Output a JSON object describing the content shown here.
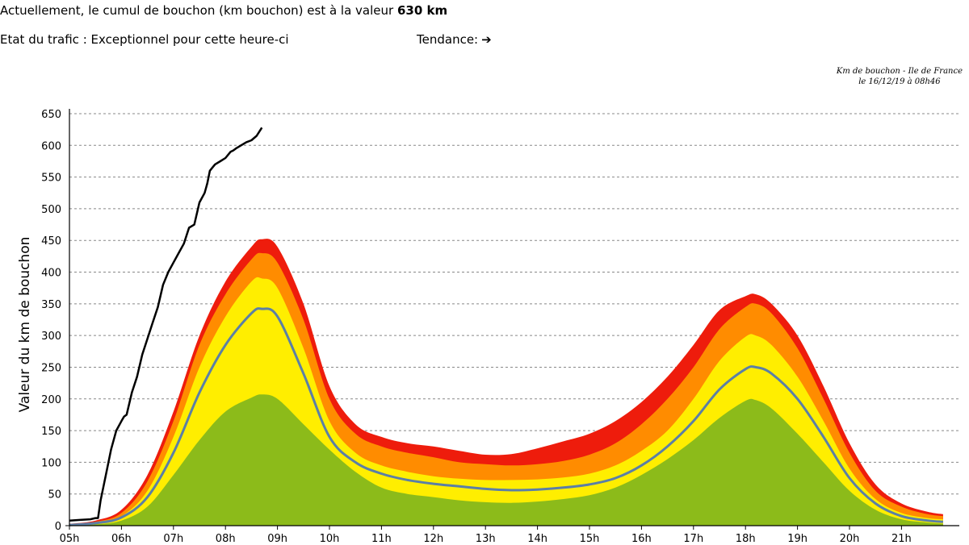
{
  "header": {
    "summary_prefix": "Actuellement, le cumul de bouchon (km bouchon) est à la valeur",
    "summary_value": "630 km",
    "state_label": "Etat du trafic : Exceptionnel pour cette heure-ci",
    "trend_label": "Tendance:",
    "trend_arrow": "➔"
  },
  "chart_title": {
    "line1": "Km de bouchon - Ile de France",
    "line2": "le 16/12/19 à 08h46"
  },
  "chart_data": {
    "type": "area",
    "ylabel": "Valeur du  km de bouchon",
    "xlabel": "",
    "ylim": [
      0,
      650
    ],
    "xlim": [
      5.0,
      21.9
    ],
    "grid": true,
    "x_ticks": [
      "05h",
      "06h",
      "07h",
      "08h",
      "09h",
      "10h",
      "11h",
      "12h",
      "13h",
      "14h",
      "15h",
      "16h",
      "17h",
      "18h",
      "19h",
      "20h",
      "21h"
    ],
    "y_ticks": [
      0,
      50,
      100,
      150,
      200,
      250,
      300,
      350,
      400,
      450,
      500,
      550,
      600,
      650
    ],
    "bands": [
      {
        "color": "#ee1c0c",
        "x": [
          5.0,
          5.5,
          6.0,
          6.5,
          7.0,
          7.5,
          8.0,
          8.5,
          8.7,
          9.0,
          9.5,
          10.0,
          10.5,
          11.0,
          11.5,
          12.0,
          12.5,
          13.0,
          13.5,
          14.0,
          14.5,
          15.0,
          15.5,
          16.0,
          16.5,
          17.0,
          17.5,
          18.0,
          18.2,
          18.5,
          19.0,
          19.5,
          20.0,
          20.5,
          21.0,
          21.5,
          21.8
        ],
        "y": [
          3,
          8,
          25,
          80,
          180,
          300,
          385,
          440,
          452,
          440,
          350,
          220,
          160,
          140,
          130,
          125,
          118,
          112,
          113,
          122,
          133,
          145,
          165,
          195,
          235,
          285,
          340,
          362,
          365,
          350,
          300,
          220,
          130,
          65,
          35,
          22,
          18
        ]
      },
      {
        "color": "#ff8c00",
        "x": [
          5.0,
          5.5,
          6.0,
          6.5,
          7.0,
          7.5,
          8.0,
          8.5,
          8.7,
          9.0,
          9.5,
          10.0,
          10.5,
          11.0,
          11.5,
          12.0,
          12.5,
          13.0,
          13.5,
          14.0,
          14.5,
          15.0,
          15.5,
          16.0,
          16.5,
          17.0,
          17.5,
          18.0,
          18.2,
          18.5,
          19.0,
          19.5,
          20.0,
          20.5,
          21.0,
          21.5,
          21.8
        ],
        "y": [
          2,
          6,
          20,
          70,
          165,
          285,
          365,
          420,
          430,
          415,
          325,
          200,
          145,
          125,
          115,
          108,
          100,
          97,
          95,
          97,
          102,
          112,
          130,
          160,
          200,
          250,
          310,
          345,
          350,
          335,
          280,
          200,
          115,
          55,
          30,
          18,
          15
        ]
      },
      {
        "color": "#ffee00",
        "x": [
          5.0,
          5.5,
          6.0,
          6.5,
          7.0,
          7.5,
          8.0,
          8.5,
          8.7,
          9.0,
          9.5,
          10.0,
          10.5,
          11.0,
          11.5,
          12.0,
          12.5,
          13.0,
          13.5,
          14.0,
          14.5,
          15.0,
          15.5,
          16.0,
          16.5,
          17.0,
          17.5,
          18.0,
          18.2,
          18.5,
          19.0,
          19.5,
          20.0,
          20.5,
          21.0,
          21.5,
          21.8
        ],
        "y": [
          1,
          5,
          15,
          55,
          140,
          250,
          330,
          385,
          390,
          375,
          280,
          165,
          115,
          95,
          85,
          78,
          74,
          72,
          72,
          73,
          76,
          82,
          95,
          118,
          150,
          200,
          260,
          298,
          300,
          285,
          235,
          165,
          90,
          42,
          20,
          12,
          10
        ]
      },
      {
        "color": "#8cbb1a",
        "x": [
          5.0,
          5.5,
          6.0,
          6.5,
          7.0,
          7.5,
          8.0,
          8.5,
          8.7,
          9.0,
          9.5,
          10.0,
          10.5,
          11.0,
          11.5,
          12.0,
          12.5,
          13.0,
          13.5,
          14.0,
          14.5,
          15.0,
          15.5,
          16.0,
          16.5,
          17.0,
          17.5,
          18.0,
          18.2,
          18.5,
          19.0,
          19.5,
          20.0,
          20.5,
          21.0,
          21.5,
          21.8
        ],
        "y": [
          0,
          2,
          8,
          30,
          80,
          135,
          180,
          202,
          207,
          200,
          160,
          120,
          85,
          60,
          50,
          45,
          40,
          37,
          36,
          38,
          42,
          48,
          60,
          80,
          105,
          135,
          170,
          197,
          198,
          185,
          145,
          100,
          55,
          25,
          10,
          5,
          3
        ]
      }
    ],
    "series": [
      {
        "color": "#5b7fa6",
        "x": [
          5.0,
          5.5,
          6.0,
          6.5,
          7.0,
          7.5,
          8.0,
          8.5,
          8.7,
          9.0,
          9.5,
          10.0,
          10.5,
          11.0,
          11.5,
          12.0,
          12.5,
          13.0,
          13.5,
          14.0,
          14.5,
          15.0,
          15.5,
          16.0,
          16.5,
          17.0,
          17.5,
          18.0,
          18.2,
          18.5,
          19.0,
          19.5,
          20.0,
          20.5,
          21.0,
          21.5,
          21.8
        ],
        "y": [
          1,
          4,
          13,
          45,
          115,
          210,
          285,
          335,
          342,
          330,
          240,
          140,
          100,
          82,
          72,
          66,
          62,
          58,
          56,
          57,
          60,
          65,
          75,
          95,
          125,
          165,
          215,
          247,
          250,
          240,
          200,
          140,
          75,
          35,
          15,
          8,
          6
        ]
      },
      {
        "color": "#000000",
        "x": [
          5.0,
          5.2,
          5.4,
          5.5,
          5.55,
          5.6,
          5.7,
          5.8,
          5.9,
          6.0,
          6.05,
          6.1,
          6.2,
          6.3,
          6.4,
          6.5,
          6.6,
          6.7,
          6.8,
          6.9,
          7.0,
          7.1,
          7.2,
          7.3,
          7.4,
          7.5,
          7.6,
          7.65,
          7.7,
          7.75,
          7.8,
          7.9,
          8.0,
          8.1,
          8.15,
          8.2,
          8.3,
          8.4,
          8.5,
          8.6,
          8.7
        ],
        "y": [
          8,
          9,
          10,
          12,
          12,
          40,
          80,
          120,
          150,
          165,
          172,
          175,
          210,
          235,
          270,
          295,
          320,
          345,
          380,
          400,
          415,
          430,
          445,
          470,
          475,
          510,
          525,
          540,
          560,
          565,
          570,
          575,
          580,
          590,
          592,
          595,
          600,
          605,
          608,
          615,
          628
        ]
      }
    ]
  }
}
